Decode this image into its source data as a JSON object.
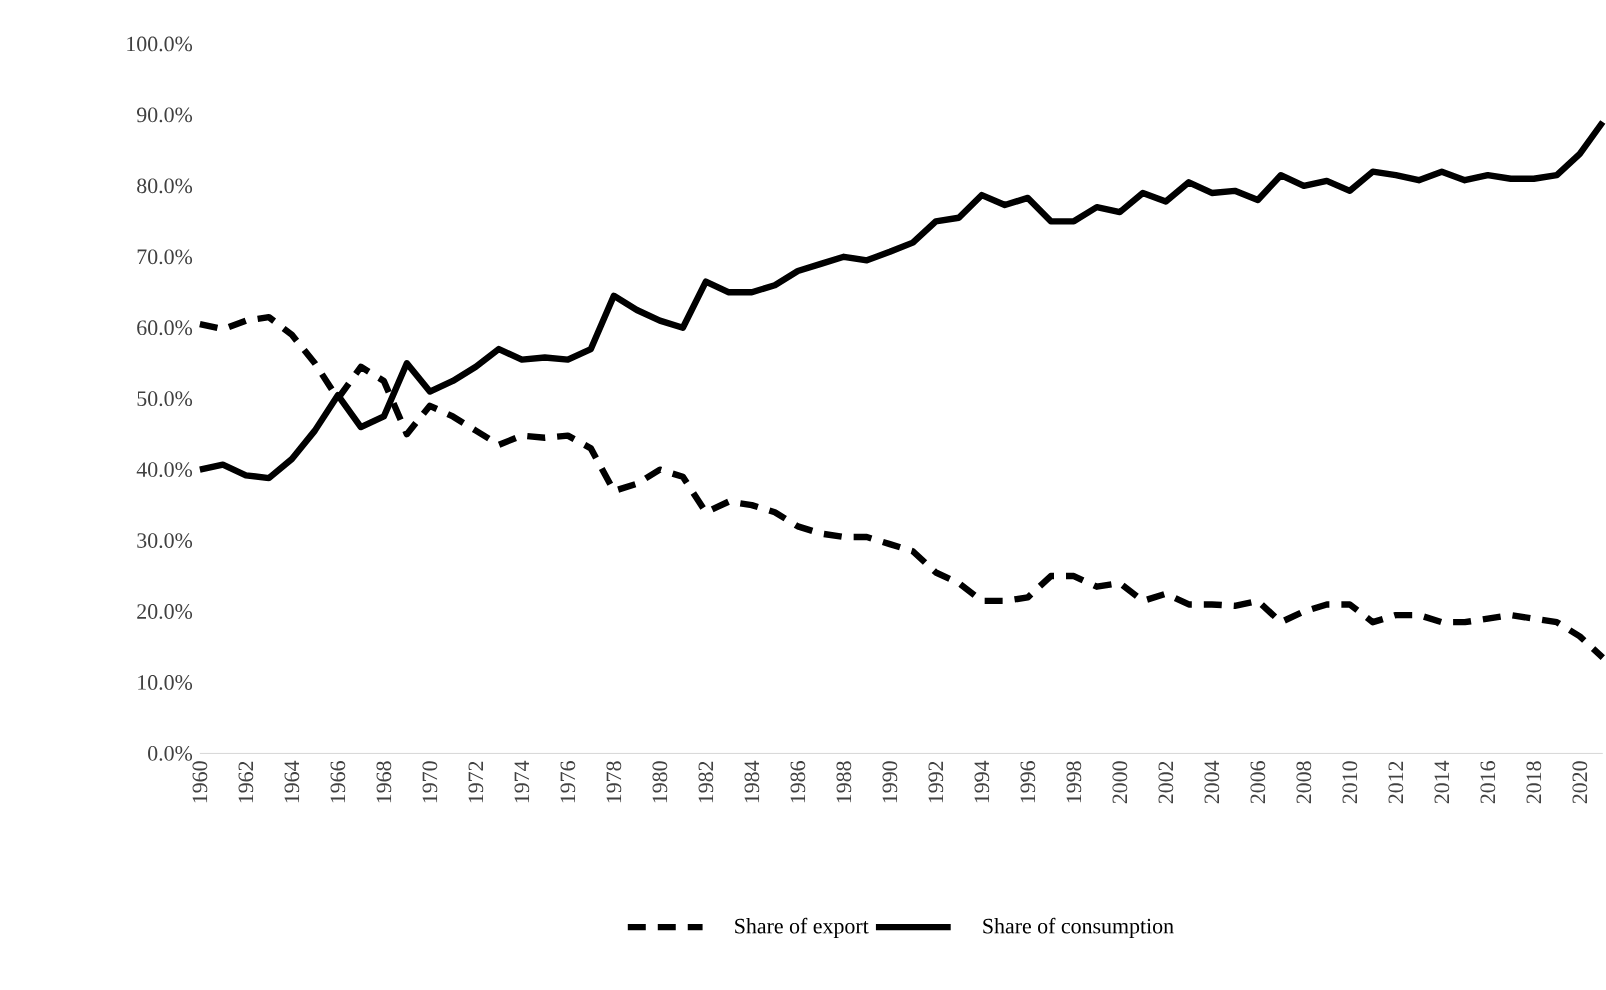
{
  "chart_data": {
    "type": "line",
    "x": [
      1960,
      1961,
      1962,
      1963,
      1964,
      1965,
      1966,
      1967,
      1968,
      1969,
      1970,
      1971,
      1972,
      1973,
      1974,
      1975,
      1976,
      1977,
      1978,
      1979,
      1980,
      1981,
      1982,
      1983,
      1984,
      1985,
      1986,
      1987,
      1988,
      1989,
      1990,
      1991,
      1992,
      1993,
      1994,
      1995,
      1996,
      1997,
      1998,
      1999,
      2000,
      2001,
      2002,
      2003,
      2004,
      2005,
      2006,
      2007,
      2008,
      2009,
      2010,
      2011,
      2012,
      2013,
      2014,
      2015,
      2016,
      2017,
      2018,
      2019,
      2020,
      2021
    ],
    "series": [
      {
        "name": "Share of export",
        "color": "#000000",
        "line_style": "dashed",
        "values": [
          60.5,
          59.8,
          61.0,
          61.5,
          59.0,
          55.0,
          50.0,
          54.5,
          52.5,
          45.0,
          49.0,
          47.5,
          45.5,
          43.5,
          44.8,
          44.5,
          44.8,
          43.0,
          37.0,
          38.0,
          40.0,
          39.0,
          34.0,
          35.5,
          35.0,
          34.0,
          32.0,
          31.0,
          30.5,
          30.5,
          29.5,
          28.5,
          25.5,
          24.0,
          21.5,
          21.5,
          22.0,
          25.0,
          25.0,
          23.5,
          24.0,
          21.5,
          22.5,
          21.0,
          21.0,
          20.8,
          21.5,
          18.5,
          20.0,
          21.0,
          21.0,
          18.5,
          19.5,
          19.5,
          18.5,
          18.5,
          19.0,
          19.5,
          19.0,
          18.5,
          16.5,
          13.5
        ]
      },
      {
        "name": "Share of consumption",
        "color": "#000000",
        "line_style": "solid",
        "values": [
          40.0,
          40.7,
          39.2,
          38.8,
          41.5,
          45.5,
          50.5,
          46.0,
          47.5,
          55.0,
          51.0,
          52.5,
          54.5,
          57.0,
          55.5,
          55.8,
          55.5,
          57.0,
          64.5,
          62.5,
          61.0,
          60.0,
          66.5,
          65.0,
          65.0,
          66.0,
          68.0,
          69.0,
          70.0,
          69.5,
          70.7,
          72.0,
          75.0,
          75.5,
          78.7,
          77.3,
          78.3,
          75.0,
          75.0,
          77.0,
          76.3,
          79.0,
          77.8,
          80.5,
          79.0,
          79.3,
          78.0,
          81.5,
          80.0,
          80.7,
          79.3,
          82.0,
          81.5,
          80.8,
          82.0,
          80.8,
          81.5,
          81.0,
          81.0,
          81.5,
          84.5,
          89.0
        ]
      }
    ],
    "xlim": [
      1960,
      2021
    ],
    "xticks": [
      1960,
      1962,
      1964,
      1966,
      1968,
      1970,
      1972,
      1974,
      1976,
      1978,
      1980,
      1982,
      1984,
      1986,
      1988,
      1990,
      1992,
      1994,
      1996,
      1998,
      2000,
      2002,
      2004,
      2006,
      2008,
      2010,
      2012,
      2014,
      2016,
      2018,
      2020
    ],
    "ylim": [
      0,
      100
    ],
    "yticks": [
      {
        "value": 0,
        "label": "0.0%"
      },
      {
        "value": 10,
        "label": "10.0%"
      },
      {
        "value": 20,
        "label": "20.0%"
      },
      {
        "value": 30,
        "label": "30.0%"
      },
      {
        "value": 40,
        "label": "40.0%"
      },
      {
        "value": 50,
        "label": "50.0%"
      },
      {
        "value": 60,
        "label": "60.0%"
      },
      {
        "value": 70,
        "label": "70.0%"
      },
      {
        "value": 80,
        "label": "80.0%"
      },
      {
        "value": 90,
        "label": "90.0%"
      },
      {
        "value": 100,
        "label": "100.0%"
      }
    ],
    "grid": false,
    "legend": "bottom"
  }
}
